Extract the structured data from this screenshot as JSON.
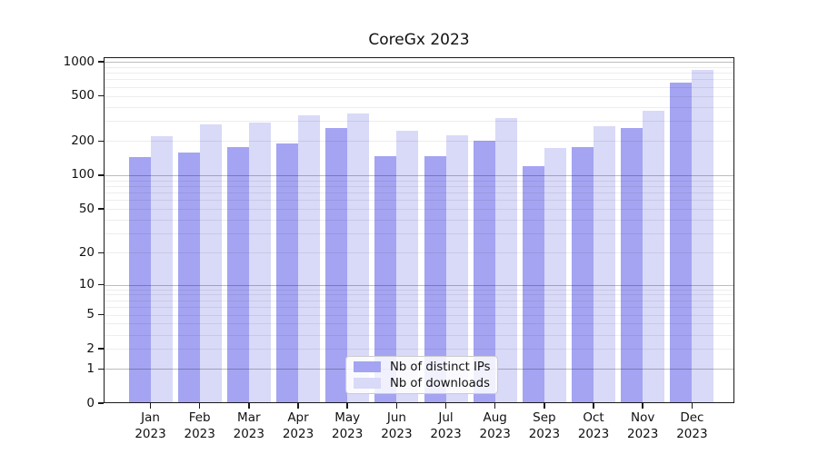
{
  "figure": {
    "background": "#ffffff"
  },
  "chart_data": {
    "type": "bar",
    "title": "CoreGx 2023",
    "categories": [
      "Jan",
      "Feb",
      "Mar",
      "Apr",
      "May",
      "Jun",
      "Jul",
      "Aug",
      "Sep",
      "Oct",
      "Nov",
      "Dec"
    ],
    "category_year": "2023",
    "series": [
      {
        "name": "Nb of distinct IPs",
        "color": "#a4a4f2",
        "values": [
          145,
          158,
          177,
          190,
          263,
          148,
          146,
          200,
          119,
          176,
          260,
          660
        ]
      },
      {
        "name": "Nb of downloads",
        "color": "#d9d9f8",
        "values": [
          221,
          280,
          292,
          337,
          352,
          249,
          224,
          319,
          174,
          270,
          370,
          850
        ]
      }
    ],
    "xlabel": "",
    "ylabel": "",
    "yscale": "log(value+1)",
    "ylim": [
      0,
      1100
    ],
    "yticks": [
      0,
      1,
      2,
      5,
      10,
      20,
      50,
      100,
      200,
      500,
      1000
    ],
    "grid": "horizontal, major and minor",
    "legend_position": "lower center",
    "colors": {
      "spine": "#1a1a1a",
      "grid_major": "rgba(0,0,0,0.26)",
      "grid_minor": "rgba(0,0,0,0.07)"
    }
  }
}
